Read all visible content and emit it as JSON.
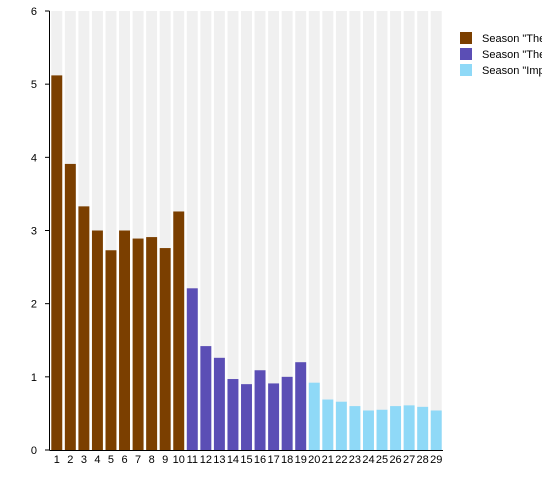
{
  "chart_data": {
    "type": "bar",
    "title": "",
    "xlabel": "",
    "ylabel": "",
    "ylim": [
      0,
      6
    ],
    "yticks": [
      0,
      1,
      2,
      3,
      4,
      5,
      6
    ],
    "categories": [
      "1",
      "2",
      "3",
      "4",
      "5",
      "6",
      "7",
      "8",
      "9",
      "10",
      "11",
      "12",
      "13",
      "14",
      "15",
      "16",
      "17",
      "18",
      "19",
      "20",
      "21",
      "22",
      "23",
      "24",
      "25",
      "26",
      "27",
      "28",
      "29"
    ],
    "background_columns": true,
    "legend_position": "top-right",
    "series": [
      {
        "name": "Season \"The",
        "color": "#7b3f00",
        "x": [
          "1",
          "2",
          "3",
          "4",
          "5",
          "6",
          "7",
          "8",
          "9",
          "10"
        ],
        "values": [
          5.12,
          3.91,
          3.33,
          3.0,
          2.73,
          3.0,
          2.89,
          2.91,
          2.76,
          3.26
        ]
      },
      {
        "name": "Season \"The",
        "color": "#5b4eb5",
        "x": [
          "11",
          "12",
          "13",
          "14",
          "15",
          "16",
          "17",
          "18",
          "19"
        ],
        "values": [
          2.21,
          1.42,
          1.26,
          0.97,
          0.9,
          1.09,
          0.91,
          1.0,
          1.2
        ]
      },
      {
        "name": "Season \"Impu",
        "color": "#8fd9f7",
        "x": [
          "20",
          "21",
          "22",
          "23",
          "24",
          "25",
          "26",
          "27",
          "28",
          "29"
        ],
        "values": [
          0.92,
          0.69,
          0.66,
          0.6,
          0.54,
          0.55,
          0.6,
          0.61,
          0.59,
          0.54
        ]
      }
    ]
  }
}
